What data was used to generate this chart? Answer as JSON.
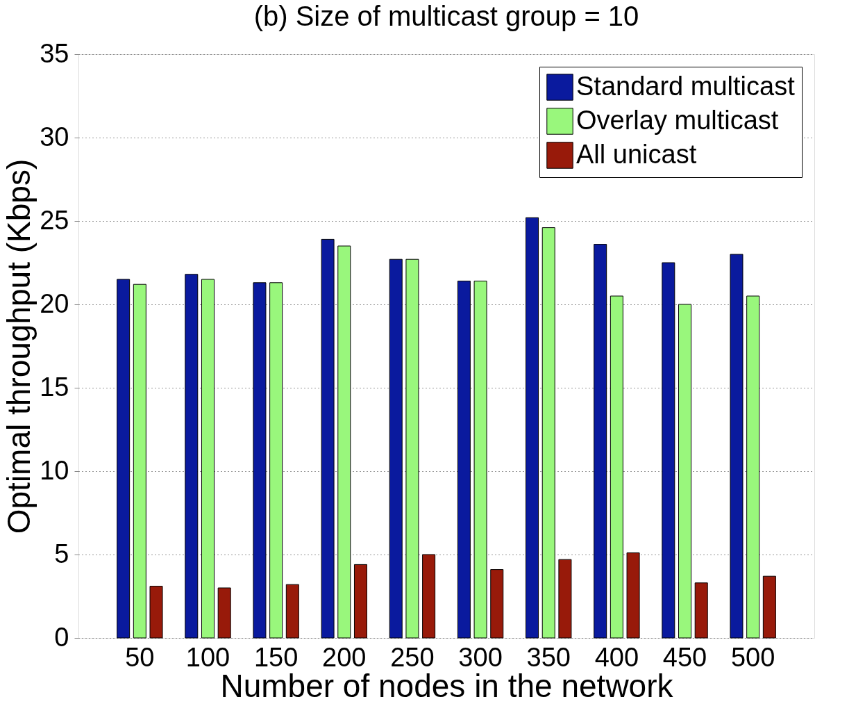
{
  "chart_data": {
    "type": "bar",
    "title": "(b) Size of multicast group = 10",
    "xlabel": "Number of nodes in the network",
    "ylabel": "Optimal throughput (Kbps)",
    "categories": [
      "50",
      "100",
      "150",
      "200",
      "250",
      "300",
      "350",
      "400",
      "450",
      "500"
    ],
    "series": [
      {
        "name": "Standard multicast",
        "color": "#0a1a9e",
        "values": [
          21.5,
          21.8,
          21.3,
          23.9,
          22.7,
          21.4,
          25.2,
          23.6,
          22.5,
          23.0
        ]
      },
      {
        "name": "Overlay multicast",
        "color": "#99f77c",
        "values": [
          21.2,
          21.5,
          21.3,
          23.5,
          22.7,
          21.4,
          24.6,
          20.5,
          20.0,
          20.5
        ]
      },
      {
        "name": "All unicast",
        "color": "#981a0a",
        "values": [
          3.1,
          3.0,
          3.2,
          4.4,
          5.0,
          4.1,
          4.7,
          5.1,
          3.3,
          3.7
        ]
      }
    ],
    "ylim": [
      0,
      35
    ],
    "yticks": [
      0,
      5,
      10,
      15,
      20,
      25,
      30,
      35
    ],
    "grid": "y",
    "legend": "top right"
  }
}
